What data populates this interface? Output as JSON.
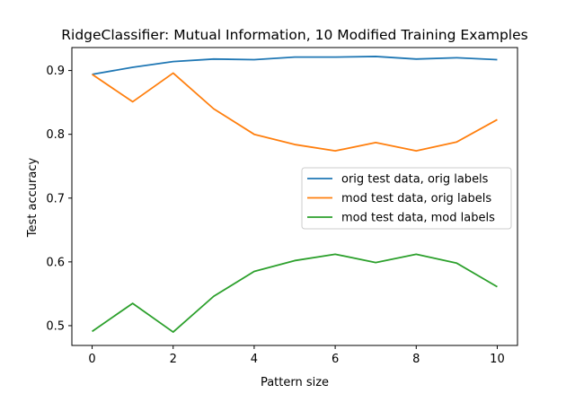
{
  "chart_data": {
    "type": "line",
    "title": "RidgeClassifier: Mutual Information, 10 Modified Training Examples",
    "xlabel": "Pattern size",
    "ylabel": "Test accuracy",
    "x": [
      0,
      1,
      2,
      3,
      4,
      5,
      6,
      7,
      8,
      9,
      10
    ],
    "xlim": [
      -0.5,
      10.5
    ],
    "ylim": [
      0.469,
      0.936
    ],
    "xticks": [
      0,
      2,
      4,
      6,
      8,
      10
    ],
    "xtick_labels": [
      "0",
      "2",
      "4",
      "6",
      "8",
      "10"
    ],
    "yticks": [
      0.5,
      0.6,
      0.7,
      0.8,
      0.9
    ],
    "ytick_labels": [
      "0.5",
      "0.6",
      "0.7",
      "0.8",
      "0.9"
    ],
    "grid": false,
    "legend_position": "center-right",
    "series": [
      {
        "name": "orig test data, orig labels",
        "color": "#1f77b4",
        "values": [
          0.894,
          0.905,
          0.914,
          0.918,
          0.917,
          0.921,
          0.921,
          0.922,
          0.918,
          0.92,
          0.917
        ]
      },
      {
        "name": "mod test data, orig labels",
        "color": "#ff7f0e",
        "values": [
          0.894,
          0.851,
          0.896,
          0.84,
          0.8,
          0.784,
          0.774,
          0.787,
          0.774,
          0.788,
          0.823
        ]
      },
      {
        "name": "mod test data, mod labels",
        "color": "#2ca02c",
        "values": [
          0.491,
          0.535,
          0.49,
          0.546,
          0.585,
          0.602,
          0.612,
          0.599,
          0.612,
          0.598,
          0.561
        ]
      }
    ]
  }
}
